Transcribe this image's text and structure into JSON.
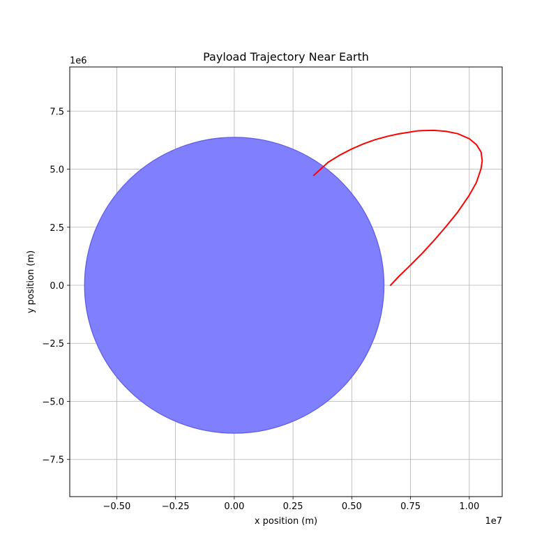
{
  "chart_data": {
    "type": "line",
    "title": "Payload Trajectory Near Earth",
    "xlabel": "x position (m)",
    "ylabel": "y position (m)",
    "x_offset_label": "1e7",
    "y_offset_label": "1e6",
    "xlim": [
      -0.7,
      1.14
    ],
    "ylim": [
      -9.1,
      9.4
    ],
    "x_scale": 10000000,
    "y_scale": 1000000,
    "grid": true,
    "x_ticks": [
      {
        "value": -0.5,
        "label": "−0.50"
      },
      {
        "value": -0.25,
        "label": "−0.25"
      },
      {
        "value": 0,
        "label": "0.00"
      },
      {
        "value": 0.25,
        "label": "0.25"
      },
      {
        "value": 0.5,
        "label": "0.50"
      },
      {
        "value": 0.75,
        "label": "0.75"
      },
      {
        "value": 1.0,
        "label": "1.00"
      }
    ],
    "y_ticks": [
      {
        "value": -7.5,
        "label": "−7.5"
      },
      {
        "value": -5,
        "label": "−5.0"
      },
      {
        "value": -2.5,
        "label": "−2.5"
      },
      {
        "value": 0,
        "label": "0.0"
      },
      {
        "value": 2.5,
        "label": "2.5"
      },
      {
        "value": 5,
        "label": "5.0"
      },
      {
        "value": 7.5,
        "label": "7.5"
      }
    ],
    "earth": {
      "center": [
        0,
        0
      ],
      "radius_x": 0.6371,
      "radius_y": 6.371,
      "color": "#8080ff",
      "edge_color": "#5a5ae6"
    },
    "series": [
      {
        "color": "#ff0000",
        "x": [
          0.665,
          0.7,
          0.75,
          0.8,
          0.85,
          0.9,
          0.95,
          1.0,
          1.03,
          1.05,
          1.055,
          1.05,
          1.03,
          1.0,
          0.95,
          0.9,
          0.85,
          0.8,
          0.78,
          0.75,
          0.7,
          0.65,
          0.6,
          0.55,
          0.5,
          0.45,
          0.4,
          0.338
        ],
        "y": [
          0.0,
          0.38,
          0.87,
          1.38,
          1.93,
          2.52,
          3.14,
          3.88,
          4.42,
          5.02,
          5.36,
          5.74,
          6.06,
          6.31,
          6.53,
          6.63,
          6.67,
          6.66,
          6.65,
          6.6,
          6.52,
          6.41,
          6.27,
          6.09,
          5.87,
          5.61,
          5.3,
          4.73
        ]
      }
    ]
  }
}
